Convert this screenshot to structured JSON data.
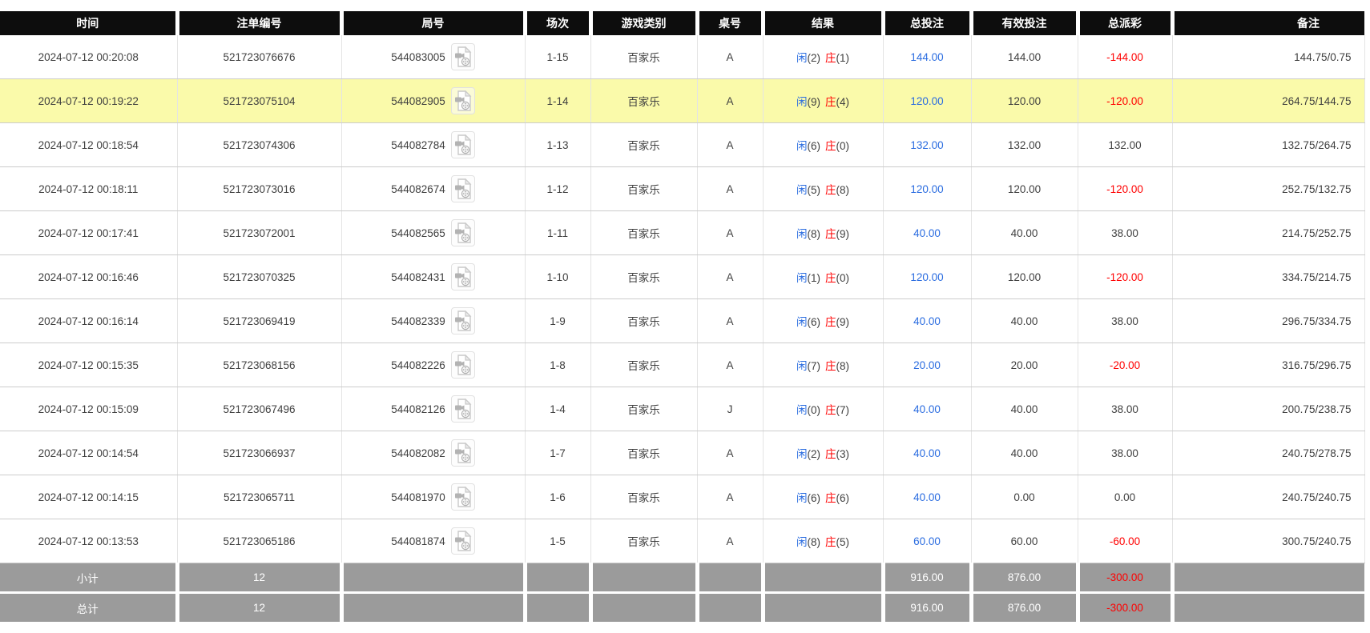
{
  "table": {
    "columns": [
      {
        "key": "time",
        "label": "时间"
      },
      {
        "key": "order_no",
        "label": "注单编号"
      },
      {
        "key": "round_no",
        "label": "局号"
      },
      {
        "key": "session",
        "label": "场次"
      },
      {
        "key": "game_type",
        "label": "游戏类别"
      },
      {
        "key": "table_no",
        "label": "桌号"
      },
      {
        "key": "result",
        "label": "结果"
      },
      {
        "key": "total_bet",
        "label": "总投注"
      },
      {
        "key": "valid_bet",
        "label": "有效投注"
      },
      {
        "key": "total_payout",
        "label": "总派彩"
      },
      {
        "key": "remark",
        "label": "备注"
      }
    ],
    "result_labels": {
      "player": "闲",
      "banker": "庄"
    },
    "icons": {
      "round_video": "video-replay-icon"
    },
    "colors": {
      "header_bg": "#0d0d0d",
      "highlight_row_bg": "#fafaaa",
      "footer_bg": "#9b9b9b",
      "amount_blue": "#2a6ce0",
      "negative_red": "#ff0000",
      "player_blue": "#2a6ce0",
      "banker_red": "#ff0000"
    },
    "rows": [
      {
        "time": "2024-07-12 00:20:08",
        "order_no": "521723076676",
        "round_no": "544083005",
        "session": "1-15",
        "game_type": "百家乐",
        "table_no": "A",
        "player": "(2)",
        "banker": "(1)",
        "total_bet": "144.00",
        "valid_bet": "144.00",
        "total_payout": "-144.00",
        "remark": "144.75/0.75",
        "highlighted": false
      },
      {
        "time": "2024-07-12 00:19:22",
        "order_no": "521723075104",
        "round_no": "544082905",
        "session": "1-14",
        "game_type": "百家乐",
        "table_no": "A",
        "player": "(9)",
        "banker": "(4)",
        "total_bet": "120.00",
        "valid_bet": "120.00",
        "total_payout": "-120.00",
        "remark": "264.75/144.75",
        "highlighted": true
      },
      {
        "time": "2024-07-12 00:18:54",
        "order_no": "521723074306",
        "round_no": "544082784",
        "session": "1-13",
        "game_type": "百家乐",
        "table_no": "A",
        "player": "(6)",
        "banker": "(0)",
        "total_bet": "132.00",
        "valid_bet": "132.00",
        "total_payout": "132.00",
        "remark": "132.75/264.75",
        "highlighted": false
      },
      {
        "time": "2024-07-12 00:18:11",
        "order_no": "521723073016",
        "round_no": "544082674",
        "session": "1-12",
        "game_type": "百家乐",
        "table_no": "A",
        "player": "(5)",
        "banker": "(8)",
        "total_bet": "120.00",
        "valid_bet": "120.00",
        "total_payout": "-120.00",
        "remark": "252.75/132.75",
        "highlighted": false
      },
      {
        "time": "2024-07-12 00:17:41",
        "order_no": "521723072001",
        "round_no": "544082565",
        "session": "1-11",
        "game_type": "百家乐",
        "table_no": "A",
        "player": "(8)",
        "banker": "(9)",
        "total_bet": "40.00",
        "valid_bet": "40.00",
        "total_payout": "38.00",
        "remark": "214.75/252.75",
        "highlighted": false
      },
      {
        "time": "2024-07-12 00:16:46",
        "order_no": "521723070325",
        "round_no": "544082431",
        "session": "1-10",
        "game_type": "百家乐",
        "table_no": "A",
        "player": "(1)",
        "banker": "(0)",
        "total_bet": "120.00",
        "valid_bet": "120.00",
        "total_payout": "-120.00",
        "remark": "334.75/214.75",
        "highlighted": false
      },
      {
        "time": "2024-07-12 00:16:14",
        "order_no": "521723069419",
        "round_no": "544082339",
        "session": "1-9",
        "game_type": "百家乐",
        "table_no": "A",
        "player": "(6)",
        "banker": "(9)",
        "total_bet": "40.00",
        "valid_bet": "40.00",
        "total_payout": "38.00",
        "remark": "296.75/334.75",
        "highlighted": false
      },
      {
        "time": "2024-07-12 00:15:35",
        "order_no": "521723068156",
        "round_no": "544082226",
        "session": "1-8",
        "game_type": "百家乐",
        "table_no": "A",
        "player": "(7)",
        "banker": "(8)",
        "total_bet": "20.00",
        "valid_bet": "20.00",
        "total_payout": "-20.00",
        "remark": "316.75/296.75",
        "highlighted": false
      },
      {
        "time": "2024-07-12 00:15:09",
        "order_no": "521723067496",
        "round_no": "544082126",
        "session": "1-4",
        "game_type": "百家乐",
        "table_no": "J",
        "player": "(0)",
        "banker": "(7)",
        "total_bet": "40.00",
        "valid_bet": "40.00",
        "total_payout": "38.00",
        "remark": "200.75/238.75",
        "highlighted": false
      },
      {
        "time": "2024-07-12 00:14:54",
        "order_no": "521723066937",
        "round_no": "544082082",
        "session": "1-7",
        "game_type": "百家乐",
        "table_no": "A",
        "player": "(2)",
        "banker": "(3)",
        "total_bet": "40.00",
        "valid_bet": "40.00",
        "total_payout": "38.00",
        "remark": "240.75/278.75",
        "highlighted": false
      },
      {
        "time": "2024-07-12 00:14:15",
        "order_no": "521723065711",
        "round_no": "544081970",
        "session": "1-6",
        "game_type": "百家乐",
        "table_no": "A",
        "player": "(6)",
        "banker": "(6)",
        "total_bet": "40.00",
        "valid_bet": "0.00",
        "total_payout": "0.00",
        "remark": "240.75/240.75",
        "highlighted": false
      },
      {
        "time": "2024-07-12 00:13:53",
        "order_no": "521723065186",
        "round_no": "544081874",
        "session": "1-5",
        "game_type": "百家乐",
        "table_no": "A",
        "player": "(8)",
        "banker": "(5)",
        "total_bet": "60.00",
        "valid_bet": "60.00",
        "total_payout": "-60.00",
        "remark": "300.75/240.75",
        "highlighted": false
      }
    ],
    "footer": [
      {
        "label": "小计",
        "count": "12",
        "total_bet": "916.00",
        "valid_bet": "876.00",
        "total_payout": "-300.00"
      },
      {
        "label": "总计",
        "count": "12",
        "total_bet": "916.00",
        "valid_bet": "876.00",
        "total_payout": "-300.00"
      }
    ]
  }
}
